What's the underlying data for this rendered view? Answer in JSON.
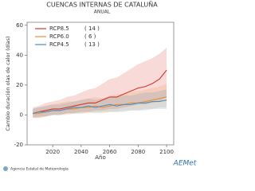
{
  "chart_data": {
    "type": "line",
    "title": "CUENCAS INTERNAS DE CATALUÑA",
    "subtitle": "ANUAL",
    "y_label": "Cambio duración olas de calor (días)",
    "x_label": "Año",
    "source": "Agencia Estatal de Meteorología",
    "logo": "AEMet",
    "x": [
      2006,
      2010,
      2015,
      2020,
      2025,
      2030,
      2035,
      2040,
      2045,
      2050,
      2055,
      2060,
      2065,
      2070,
      2075,
      2080,
      2085,
      2090,
      2095,
      2100
    ],
    "xlim": [
      2002,
      2105
    ],
    "xticks": [
      2020,
      2040,
      2060,
      2080,
      2100
    ],
    "ylim": [
      -20,
      62
    ],
    "yticks": [
      -20,
      0,
      20,
      40,
      60
    ],
    "legend": "upper-left",
    "series": [
      {
        "name": "RCP8.5",
        "color": "#d6352c",
        "models": {
          "value": 14,
          "label": "( 14 )"
        },
        "values": [
          1,
          2,
          3,
          4,
          4,
          5,
          6,
          7,
          8,
          8,
          10,
          12,
          12,
          14,
          16,
          18,
          19,
          21,
          24,
          30
        ],
        "lower": [
          -2,
          -2,
          -1,
          0,
          0,
          1,
          1,
          2,
          2,
          3,
          3,
          4,
          4,
          5,
          6,
          7,
          7,
          8,
          9,
          12
        ],
        "upper": [
          5,
          6,
          8,
          9,
          10,
          12,
          13,
          15,
          17,
          18,
          21,
          24,
          25,
          28,
          31,
          34,
          36,
          38,
          41,
          45
        ]
      },
      {
        "name": "RCP6.0",
        "color": "#ec8f2c",
        "models": {
          "value": 6,
          "label": "( 6 )"
        },
        "values": [
          1,
          1,
          2,
          3,
          3,
          4,
          4,
          5,
          5,
          6,
          5,
          6,
          7,
          7,
          8,
          8,
          9,
          10,
          11,
          12
        ],
        "lower": [
          -1,
          -2,
          -1,
          0,
          0,
          0,
          1,
          1,
          1,
          2,
          1,
          2,
          2,
          3,
          3,
          3,
          4,
          4,
          5,
          5
        ],
        "upper": [
          4,
          5,
          6,
          7,
          8,
          9,
          9,
          10,
          11,
          12,
          11,
          13,
          14,
          14,
          15,
          16,
          17,
          18,
          19,
          21
        ]
      },
      {
        "name": "RCP4.5",
        "color": "#4a90c0",
        "models": {
          "value": 13,
          "label": "( 13 )"
        },
        "values": [
          1,
          2,
          2,
          3,
          3,
          4,
          5,
          5,
          6,
          5,
          6,
          7,
          6,
          7,
          7,
          8,
          8,
          9,
          9,
          10
        ],
        "lower": [
          -2,
          -1,
          -1,
          0,
          0,
          1,
          1,
          1,
          2,
          1,
          2,
          2,
          2,
          2,
          3,
          3,
          3,
          4,
          4,
          4
        ],
        "upper": [
          4,
          5,
          6,
          7,
          7,
          8,
          9,
          10,
          11,
          10,
          11,
          12,
          12,
          13,
          13,
          14,
          15,
          15,
          16,
          17
        ]
      }
    ]
  }
}
